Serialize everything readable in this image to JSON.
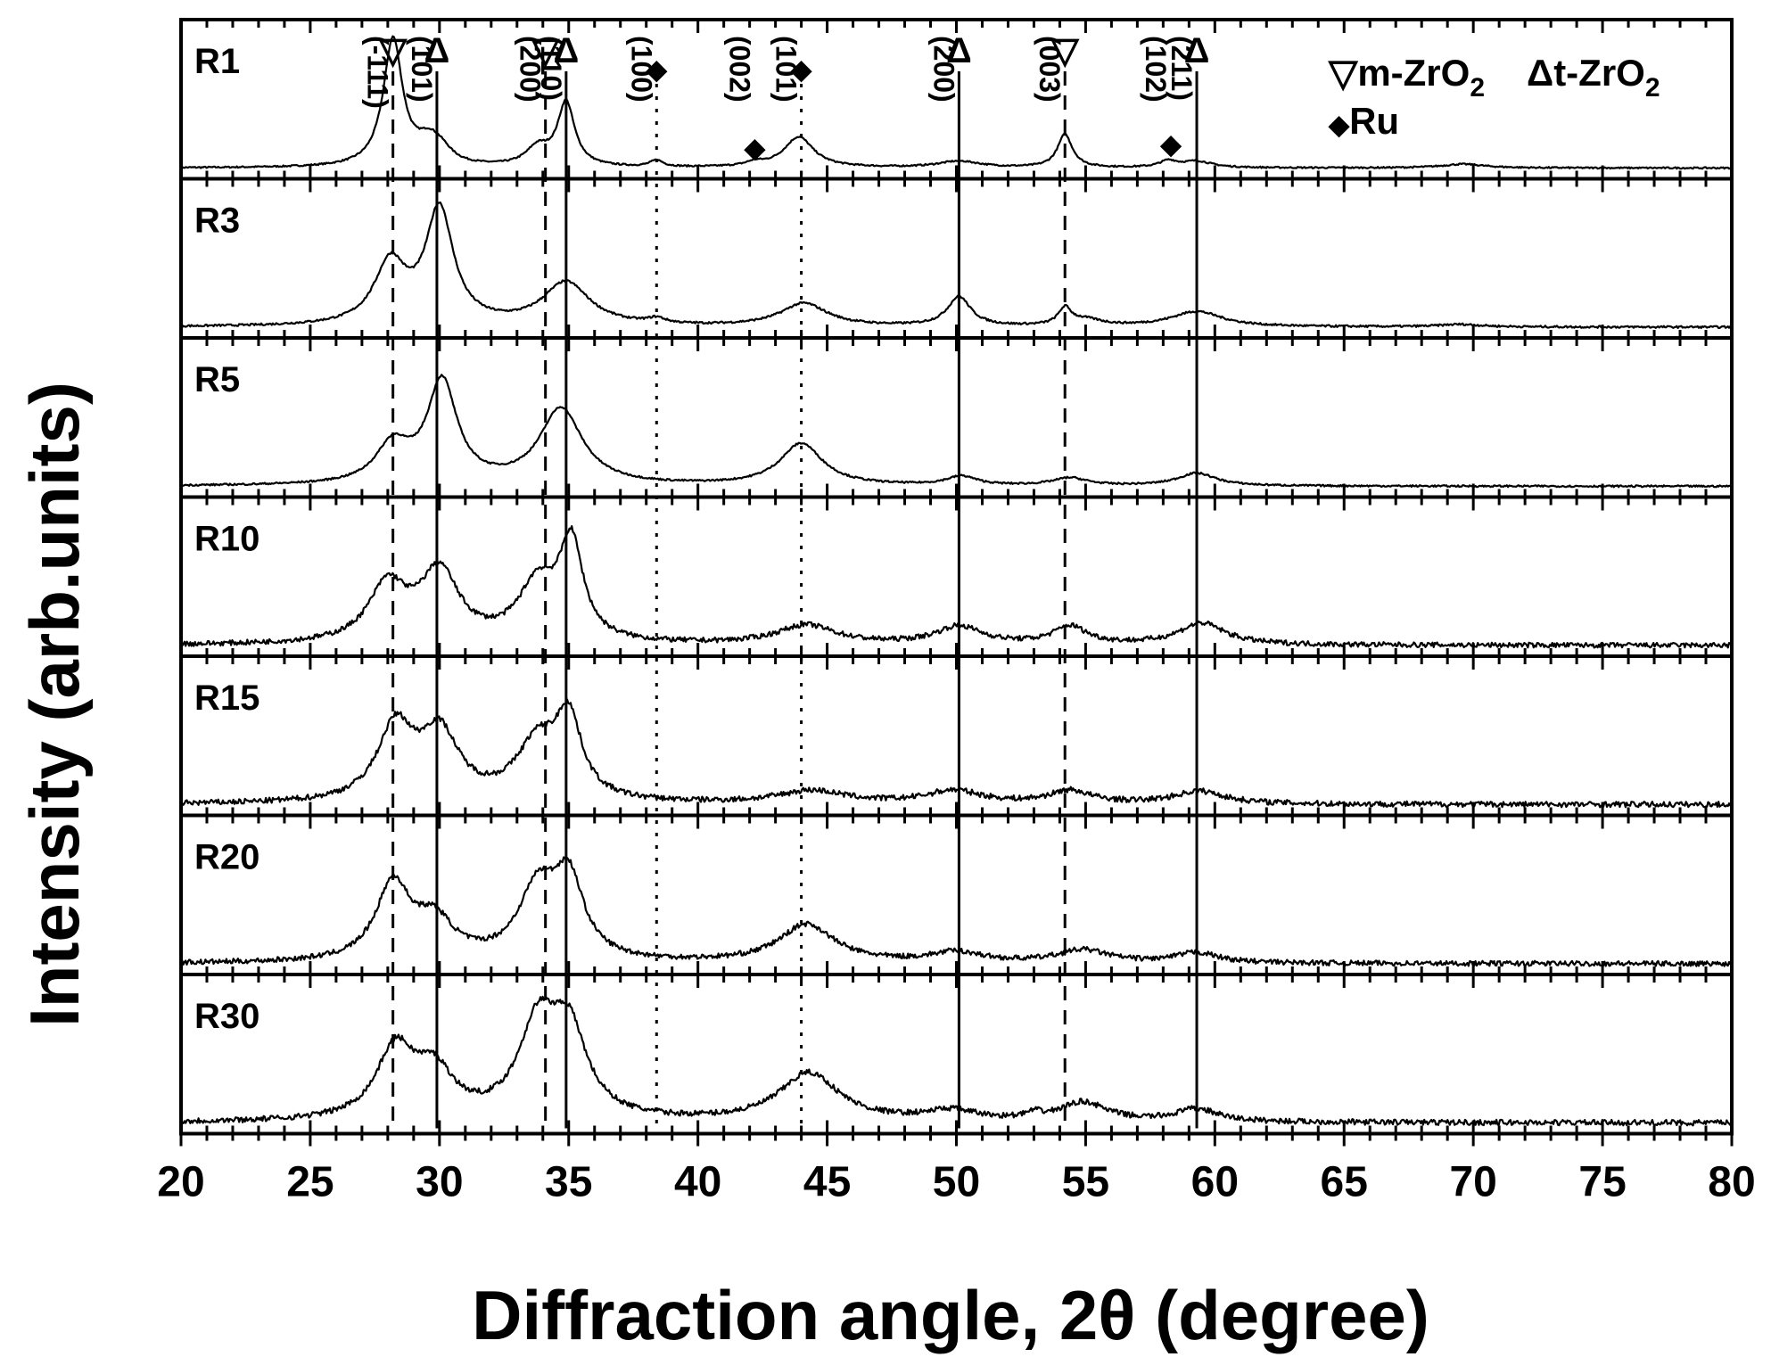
{
  "chart_data": {
    "type": "line",
    "title": "",
    "xlabel": "Diffraction angle, 2θ (degree)",
    "ylabel": "Intensity (arb.units)",
    "xlim": [
      20,
      80
    ],
    "x_ticks": [
      20,
      25,
      30,
      35,
      40,
      45,
      50,
      55,
      60,
      65,
      70,
      75,
      80
    ],
    "x_tick_labels": [
      "20",
      "25",
      "30",
      "35",
      "40",
      "45",
      "50",
      "55",
      "60",
      "65",
      "70",
      "75",
      "80"
    ],
    "grid": false,
    "stacked_panels": true,
    "line_color": "#000000",
    "legend": {
      "placement": "top-right",
      "entries": [
        {
          "symbol": "▽",
          "text": "m-ZrO",
          "subscript": "2"
        },
        {
          "symbol": "Δ",
          "text": "t-ZrO",
          "subscript": "2"
        },
        {
          "symbol": "◆",
          "text": "Ru"
        }
      ]
    },
    "reference_lines": [
      {
        "x": 28.2,
        "style": "dashed",
        "phase": "m-ZrO2"
      },
      {
        "x": 29.9,
        "style": "solid",
        "phase": "t-ZrO2"
      },
      {
        "x": 34.1,
        "style": "dashed",
        "phase": "m-ZrO2"
      },
      {
        "x": 34.9,
        "style": "solid",
        "phase": "t-ZrO2"
      },
      {
        "x": 38.4,
        "style": "dotted",
        "phase": "Ru"
      },
      {
        "x": 44.0,
        "style": "dotted",
        "phase": "Ru"
      },
      {
        "x": 50.1,
        "style": "solid",
        "phase": "t-ZrO2"
      },
      {
        "x": 54.2,
        "style": "dashed",
        "phase": "m-ZrO2"
      },
      {
        "x": 59.3,
        "style": "solid",
        "phase": "t-ZrO2"
      }
    ],
    "peak_annotations": [
      {
        "x": 28.2,
        "symbol": "▽",
        "label": "(-111)"
      },
      {
        "x": 29.9,
        "symbol": "Δ",
        "label": "(101)"
      },
      {
        "x": 34.1,
        "symbol": "▽",
        "label": "(200)"
      },
      {
        "x": 34.9,
        "symbol": "Δ",
        "label": "(110)"
      },
      {
        "x": 38.4,
        "symbol": "◆",
        "label": "(100)"
      },
      {
        "x": 42.2,
        "symbol": "◆",
        "label": "(002)"
      },
      {
        "x": 44.0,
        "symbol": "◆",
        "label": "(101)"
      },
      {
        "x": 50.1,
        "symbol": "Δ",
        "label": "(200)"
      },
      {
        "x": 54.2,
        "symbol": "▽",
        "label": "(003)"
      },
      {
        "x": 58.3,
        "symbol": "◆",
        "label": "(102)"
      },
      {
        "x": 59.3,
        "symbol": "Δ",
        "label": "(211)"
      }
    ],
    "series": [
      {
        "name": "R1",
        "noise": 0.006,
        "peaks": [
          [
            28.2,
            1.0,
            0.45
          ],
          [
            29.6,
            0.18,
            0.6
          ],
          [
            30.1,
            0.07,
            0.5
          ],
          [
            33.8,
            0.14,
            0.55
          ],
          [
            34.9,
            0.5,
            0.4
          ],
          [
            38.4,
            0.05,
            0.3
          ],
          [
            42.2,
            0.03,
            0.4
          ],
          [
            43.9,
            0.24,
            0.7
          ],
          [
            50.1,
            0.05,
            1.0
          ],
          [
            54.2,
            0.26,
            0.35
          ],
          [
            58.2,
            0.05,
            0.4
          ],
          [
            59.3,
            0.05,
            0.7
          ],
          [
            69.6,
            0.03,
            1.0
          ]
        ]
      },
      {
        "name": "R3",
        "noise": 0.008,
        "peaks": [
          [
            28.1,
            0.48,
            0.75
          ],
          [
            30.0,
            0.9,
            0.65
          ],
          [
            34.9,
            0.34,
            1.1
          ],
          [
            38.4,
            0.04,
            0.4
          ],
          [
            44.1,
            0.18,
            1.1
          ],
          [
            50.1,
            0.23,
            0.55
          ],
          [
            54.2,
            0.13,
            0.3
          ],
          [
            55.0,
            0.05,
            0.8
          ],
          [
            59.3,
            0.12,
            1.2
          ],
          [
            69.5,
            0.02,
            1.0
          ]
        ]
      },
      {
        "name": "R5",
        "noise": 0.007,
        "peaks": [
          [
            28.2,
            0.3,
            0.8
          ],
          [
            30.1,
            0.8,
            0.7
          ],
          [
            34.7,
            0.6,
            1.0
          ],
          [
            44.0,
            0.33,
            1.0
          ],
          [
            50.2,
            0.07,
            0.7
          ],
          [
            54.4,
            0.06,
            0.8
          ],
          [
            59.3,
            0.1,
            0.9
          ]
        ]
      },
      {
        "name": "R10",
        "noise": 0.02,
        "peaks": [
          [
            28.0,
            0.45,
            0.9
          ],
          [
            30.0,
            0.55,
            0.9
          ],
          [
            33.8,
            0.45,
            0.9
          ],
          [
            35.1,
            0.75,
            0.55
          ],
          [
            44.2,
            0.15,
            1.4
          ],
          [
            50.1,
            0.14,
            1.1
          ],
          [
            54.4,
            0.14,
            0.8
          ],
          [
            59.5,
            0.17,
            1.1
          ]
        ]
      },
      {
        "name": "R15",
        "noise": 0.022,
        "peaks": [
          [
            28.3,
            0.58,
            0.85
          ],
          [
            30.0,
            0.52,
            0.9
          ],
          [
            33.8,
            0.45,
            1.0
          ],
          [
            35.0,
            0.6,
            0.6
          ],
          [
            44.4,
            0.1,
            1.6
          ],
          [
            49.9,
            0.1,
            1.3
          ],
          [
            54.4,
            0.1,
            1.0
          ],
          [
            59.4,
            0.1,
            1.2
          ]
        ]
      },
      {
        "name": "R20",
        "noise": 0.02,
        "peaks": [
          [
            28.2,
            0.6,
            0.8
          ],
          [
            29.8,
            0.3,
            0.9
          ],
          [
            33.8,
            0.55,
            0.9
          ],
          [
            35.0,
            0.6,
            0.7
          ],
          [
            44.2,
            0.3,
            1.3
          ],
          [
            50.0,
            0.08,
            1.2
          ],
          [
            54.9,
            0.1,
            1.2
          ],
          [
            59.3,
            0.08,
            1.0
          ]
        ]
      },
      {
        "name": "R30",
        "noise": 0.022,
        "peaks": [
          [
            28.3,
            0.55,
            0.9
          ],
          [
            29.8,
            0.35,
            0.9
          ],
          [
            33.8,
            0.7,
            0.9
          ],
          [
            35.0,
            0.65,
            0.85
          ],
          [
            44.3,
            0.38,
            1.4
          ],
          [
            49.8,
            0.08,
            1.2
          ],
          [
            53.0,
            0.04,
            0.4
          ],
          [
            54.9,
            0.15,
            1.1
          ],
          [
            59.3,
            0.1,
            1.0
          ]
        ]
      }
    ]
  }
}
